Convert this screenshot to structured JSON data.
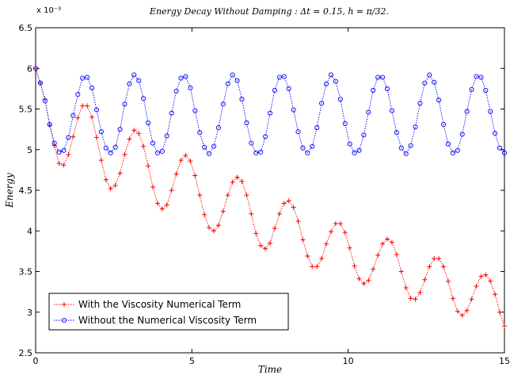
{
  "chart_data": {
    "type": "line",
    "title": "Energy Decay Without Damping : Δt = 0.15, h = π/32.",
    "xlabel": "Time",
    "ylabel": "Energy",
    "y_exponent_label": "x 10⁻³",
    "xlim": [
      0,
      15
    ],
    "ylim": [
      0.0025,
      0.0065
    ],
    "x_ticks": [
      0,
      5,
      10,
      15
    ],
    "y_ticks": [
      0.0025,
      0.003,
      0.0035,
      0.004,
      0.0045,
      0.005,
      0.0055,
      0.006,
      0.0065
    ],
    "y_tick_labels": [
      "2.5",
      "3",
      "3.5",
      "4",
      "4.5",
      "5",
      "5.5",
      "6",
      "6.5"
    ],
    "grid": false,
    "legend_position": "bottom-left",
    "x_step": 0.15,
    "n_points": 101,
    "series": [
      {
        "name": "With the Viscosity Numerical Term",
        "color": "#ff0000",
        "marker": "plus",
        "values": [
          0.006,
          0.00582,
          0.00562,
          0.0053,
          0.00505,
          0.00483,
          0.00481,
          0.00494,
          0.00516,
          0.00539,
          0.00554,
          0.00554,
          0.0054,
          0.00515,
          0.00487,
          0.00463,
          0.00452,
          0.00456,
          0.00471,
          0.00494,
          0.00513,
          0.00524,
          0.0052,
          0.00504,
          0.0048,
          0.00454,
          0.00434,
          0.00427,
          0.00432,
          0.0045,
          0.0047,
          0.00487,
          0.00493,
          0.00486,
          0.00468,
          0.00444,
          0.0042,
          0.00404,
          0.004,
          0.00407,
          0.00424,
          0.00444,
          0.0046,
          0.00466,
          0.00461,
          0.00444,
          0.00421,
          0.00397,
          0.00382,
          0.00378,
          0.00385,
          0.00403,
          0.00421,
          0.00434,
          0.00437,
          0.00429,
          0.00412,
          0.00389,
          0.00369,
          0.00356,
          0.00356,
          0.00366,
          0.00384,
          0.00399,
          0.00409,
          0.00409,
          0.00398,
          0.00379,
          0.00357,
          0.00341,
          0.00335,
          0.00339,
          0.00353,
          0.0037,
          0.00384,
          0.0039,
          0.00386,
          0.00371,
          0.0035,
          0.0033,
          0.00317,
          0.00316,
          0.00324,
          0.0034,
          0.00356,
          0.00366,
          0.00366,
          0.00356,
          0.00338,
          0.00317,
          0.00301,
          0.00296,
          0.00302,
          0.00316,
          0.00332,
          0.00344,
          0.00346,
          0.00338,
          0.00322,
          0.003,
          0.00283
        ]
      },
      {
        "name": "Without the Numerical Viscosity Term",
        "color": "#0000ff",
        "marker": "circle",
        "values": [
          0.006,
          0.00582,
          0.0056,
          0.00531,
          0.00508,
          0.00497,
          0.00499,
          0.00515,
          0.00542,
          0.00568,
          0.00588,
          0.00589,
          0.00576,
          0.00549,
          0.00522,
          0.00502,
          0.00496,
          0.00503,
          0.00525,
          0.00556,
          0.00581,
          0.00592,
          0.00585,
          0.00563,
          0.00533,
          0.00508,
          0.00496,
          0.00498,
          0.00517,
          0.00545,
          0.00572,
          0.00588,
          0.0059,
          0.00576,
          0.00548,
          0.00521,
          0.00503,
          0.00495,
          0.00504,
          0.00527,
          0.00556,
          0.00581,
          0.00592,
          0.00585,
          0.00562,
          0.00533,
          0.00508,
          0.00496,
          0.00497,
          0.00516,
          0.00545,
          0.00573,
          0.00589,
          0.0059,
          0.00575,
          0.00549,
          0.00522,
          0.00502,
          0.00496,
          0.00504,
          0.00527,
          0.00557,
          0.00581,
          0.00592,
          0.00584,
          0.00562,
          0.00532,
          0.00507,
          0.00496,
          0.00499,
          0.00518,
          0.00546,
          0.00573,
          0.00589,
          0.00589,
          0.00575,
          0.00548,
          0.00521,
          0.00502,
          0.00495,
          0.00505,
          0.00528,
          0.00557,
          0.00582,
          0.00592,
          0.00583,
          0.00561,
          0.00531,
          0.00507,
          0.00496,
          0.00499,
          0.00519,
          0.00547,
          0.00574,
          0.0059,
          0.00589,
          0.00573,
          0.00547,
          0.0052,
          0.00502,
          0.00496
        ]
      }
    ]
  }
}
